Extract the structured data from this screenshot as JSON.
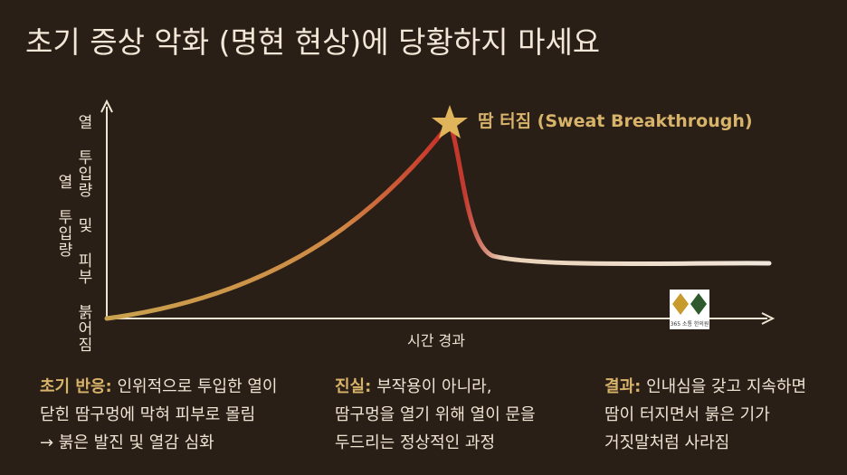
{
  "header": {
    "title": "초기 증상 악화 (명현 현상)에 당황하지 마세요"
  },
  "graph": {
    "y_axis_label": "열 투입량 및 피부 붉어짐",
    "y_axis_label_short": "열 투입량",
    "x_axis_label": "시간 경과",
    "peak_label": "땀 터짐 (Sweat Breakthrough)",
    "logo_text": "365 소통 한의원"
  },
  "notes": [
    {
      "heading": "초기 반응:",
      "lines": [
        "인위적으로 투입한 열이",
        "닫힌 땀구멍에 막혀 피부로 몰림",
        "→ 붉은 발진 및 열감 심화"
      ]
    },
    {
      "heading": "진실:",
      "lines": [
        "부작용이 아니라,",
        "땀구멍을 열기 위해 열이 문을",
        "두드리는 정상적인 과정"
      ]
    },
    {
      "heading": "결과:",
      "lines": [
        "인내심을 갖고 지속하면",
        "땀이 터지면서 붉은 기가",
        "거짓말처럼 사라짐"
      ]
    }
  ]
}
